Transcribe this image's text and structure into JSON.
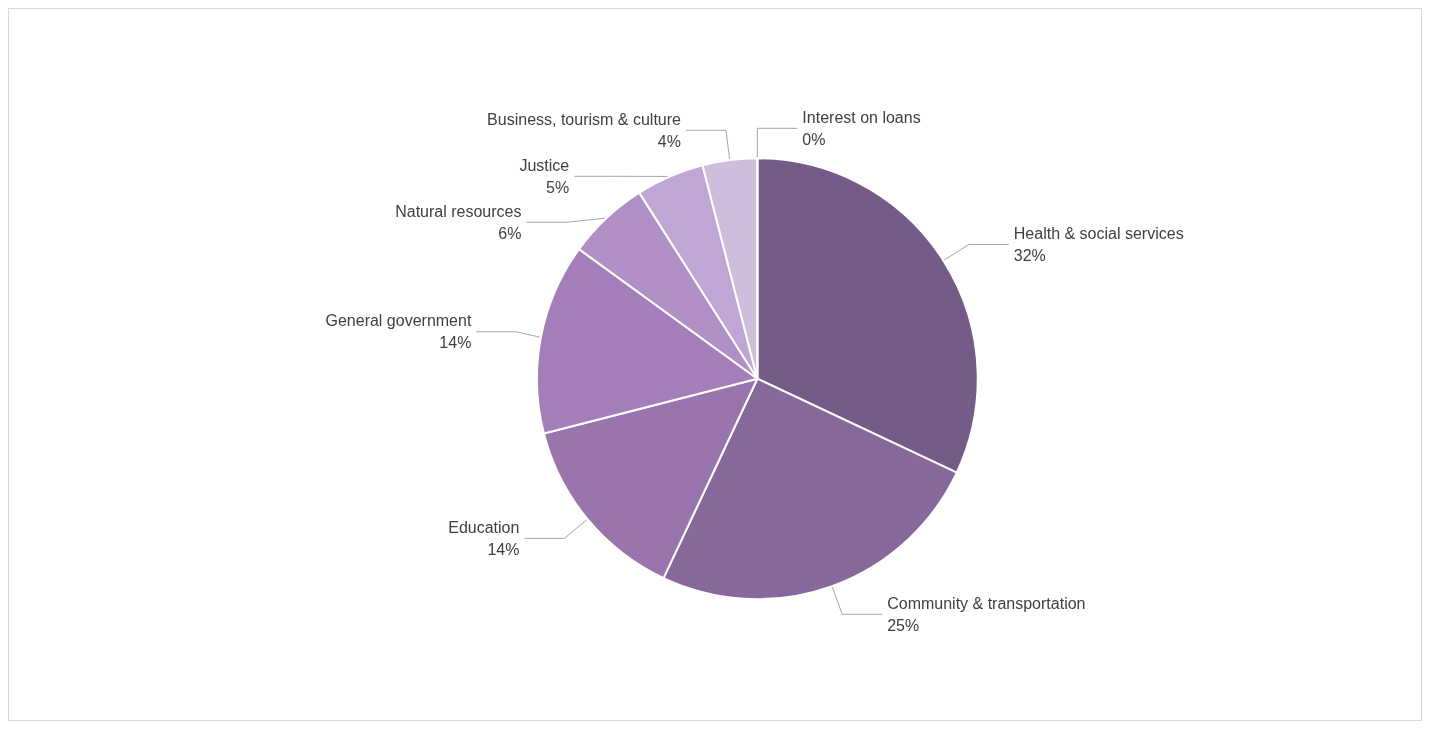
{
  "chart_data": {
    "type": "pie",
    "categories": [
      "Health & social services",
      "Community & transportation",
      "Education",
      "General government",
      "Natural resources",
      "Justice",
      "Business, tourism & culture",
      "Interest on loans"
    ],
    "values": [
      32,
      25,
      14,
      14,
      6,
      5,
      4,
      0
    ],
    "colors": [
      "#755b87",
      "#86699a",
      "#9a74ad",
      "#a47dbb",
      "#b090c6",
      "#c0a6d4",
      "#d0bddc",
      "#d8c8e4"
    ],
    "value_labels": [
      "32%",
      "25%",
      "14%",
      "14%",
      "6%",
      "5%",
      "4%",
      "0%"
    ],
    "legend": false
  }
}
